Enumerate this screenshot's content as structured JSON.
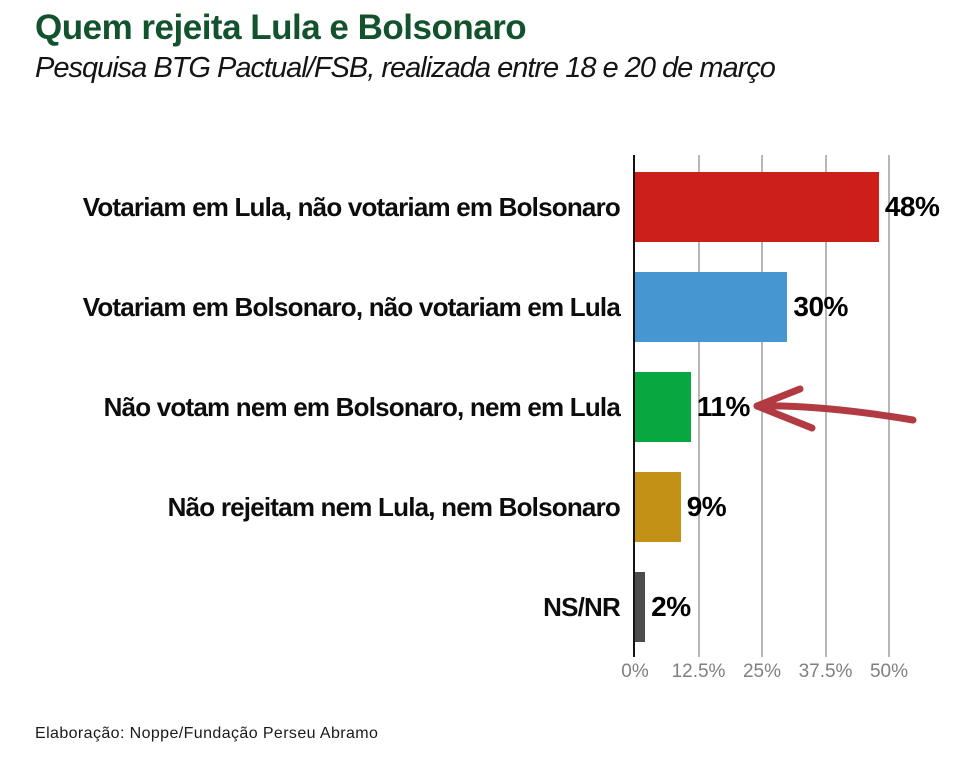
{
  "header": {
    "title": "Quem rejeita Lula e Bolsonaro",
    "subtitle": "Pesquisa BTG Pactual/FSB, realizada entre 18 e 20 de março"
  },
  "footer": {
    "source": "Elaboração: Noppe/Fundação Perseu Abramo"
  },
  "colors": {
    "title_green": "#12532e",
    "gridline_gray": "#b7b7b7",
    "axis_black": "#141414",
    "tick_label_gray": "#808080",
    "annotation_arrow_red": "#b23a43"
  },
  "chart_data": {
    "type": "bar",
    "orientation": "horizontal",
    "title": "Quem rejeita Lula e Bolsonaro",
    "subtitle": "Pesquisa BTG Pactual/FSB, realizada entre 18 e 20 de março",
    "categories": [
      "Votariam em Lula, não votariam em Bolsonaro",
      "Votariam em Bolsonaro, não votariam em Lula",
      "Não votam nem em Bolsonaro, nem em Lula",
      "Não rejeitam nem Lula, nem Bolsonaro",
      "NS/NR"
    ],
    "values": [
      48,
      30,
      11,
      9,
      2
    ],
    "value_labels": [
      "48%",
      "30%",
      "11%",
      "9%",
      "2%"
    ],
    "bar_colors": [
      "#cc1f1a",
      "#4596d1",
      "#09a73f",
      "#c29116",
      "#4d4d4d"
    ],
    "x_ticks": [
      {
        "value": 0,
        "label": "0%"
      },
      {
        "value": 12.5,
        "label": "12.5%"
      },
      {
        "value": 25,
        "label": "25%"
      },
      {
        "value": 37.5,
        "label": "37.5%"
      },
      {
        "value": 50,
        "label": "50%"
      }
    ],
    "xlim": [
      0,
      50
    ],
    "grid": true,
    "legend": false,
    "annotation": {
      "shape": "hand-drawn-arrow",
      "points_to": "Não votam nem em Bolsonaro, nem em Lula — 11%",
      "color": "#b23a43"
    }
  }
}
